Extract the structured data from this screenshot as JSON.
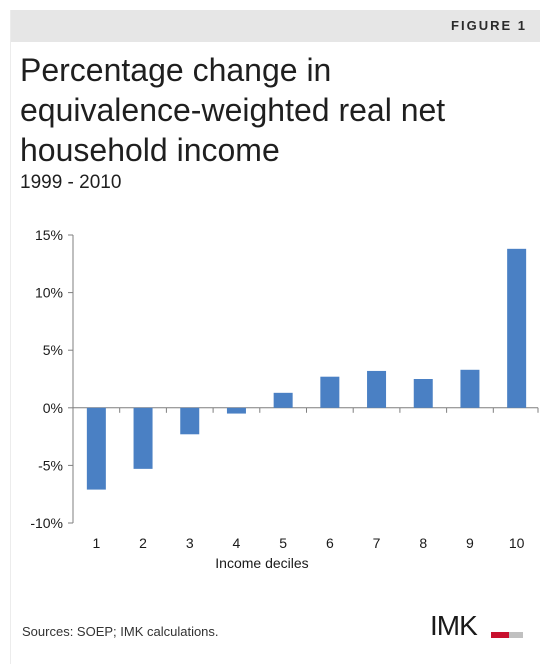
{
  "figure_label": "FIGURE 1",
  "source_note": "Sources: SOEP; IMK calculations.",
  "logo_text": "IMK",
  "colors": {
    "bar": "#4a80c4",
    "axis": "#7f7f7f",
    "band": "#e6e6e6",
    "logo_accent": "#c8102e"
  },
  "chart_data": {
    "type": "bar",
    "title": "Percentage change in equivalence-weighted real net household income",
    "subtitle": "1999 - 2010",
    "xlabel": "Income deciles",
    "ylabel": "",
    "categories": [
      "1",
      "2",
      "3",
      "4",
      "5",
      "6",
      "7",
      "8",
      "9",
      "10"
    ],
    "values": [
      -7.1,
      -5.3,
      -2.3,
      -0.5,
      1.3,
      2.7,
      3.2,
      2.5,
      3.3,
      13.8
    ],
    "ylim": [
      -10,
      15
    ],
    "yticks": [
      -10,
      -5,
      0,
      5,
      10,
      15
    ],
    "ytick_labels": [
      "-10%",
      "-5%",
      "0%",
      "5%",
      "10%",
      "15%"
    ],
    "grid": false,
    "legend": "none"
  }
}
